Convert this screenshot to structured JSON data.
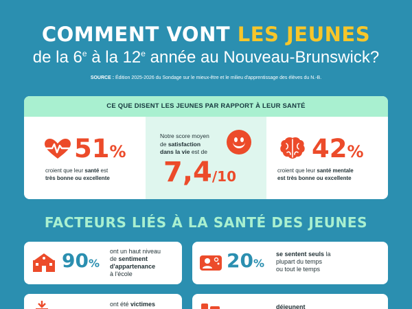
{
  "header": {
    "title_part1": "COMMENT VONT ",
    "title_part2": "LES JEUNES",
    "subtitle_a": "de la 6",
    "subtitle_sup1": "e",
    "subtitle_b": " à la 12",
    "subtitle_sup2": "e",
    "subtitle_c": " année au Nouveau-Brunswick?",
    "source_label": "SOURCE :",
    "source_text": " Édition 2025-2026 du Sondage sur le mieux-être et le milieu d'apprentissage des élèves du N.-B."
  },
  "health": {
    "heading": "CE QUE DISENT LES JEUNES PAR RAPPORT À LEUR SANTÉ",
    "left": {
      "value": "51",
      "pct": "%",
      "desc_1": "croient que leur ",
      "desc_bold_1": "santé",
      "desc_2": " est",
      "desc_bold_2": "très bonne ou excellente"
    },
    "middle": {
      "line1": "Notre score moyen",
      "line2_pre": "de ",
      "line2_bold": "satisfaction",
      "line3_bold": "dans la vie",
      "line3_post": " est de",
      "score": "7,4",
      "score_suffix": "/10"
    },
    "right": {
      "value": "42",
      "pct": "%",
      "desc_1": "croient que leur ",
      "desc_bold_1": "santé mentale",
      "desc_bold_2": "est très bonne ou excellente"
    }
  },
  "factors": {
    "heading": "FACTEURS LIÉS À LA SANTÉ DES JEUNES",
    "items": [
      {
        "value": "90",
        "pct": "%",
        "l1": "ont un haut niveau",
        "l2_pre": "de ",
        "l2_bold": "sentiment",
        "l3_bold": "d'appartenance",
        "l4_pre": "à l'école"
      },
      {
        "value": "20",
        "pct": "%",
        "l1_bold": "se sentent seuls",
        "l1_post": " la",
        "l2": "plupart du temps",
        "l3": "ou tout le temps"
      },
      {
        "l1_pre": "ont été ",
        "l1_bold": "victimes"
      },
      {
        "l1_bold": "déjeunent"
      }
    ]
  },
  "colors": {
    "background": "#2b8fb0",
    "accent_yellow": "#f7c62a",
    "accent_red": "#ec4b2a",
    "mint": "#a9f0d0"
  },
  "icons": [
    "heart-pulse-icon",
    "smiley-icon",
    "brain-icon",
    "school-icon",
    "lonely-person-icon",
    "bully-icon",
    "breakfast-icon"
  ]
}
